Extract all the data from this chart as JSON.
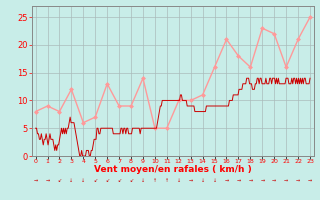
{
  "title": "",
  "xlabel": "Vent moyen/en rafales ( km/h )",
  "background_color": "#c8ede8",
  "grid_color": "#aabbbb",
  "axis_color": "#888888",
  "line1_color": "#cc0000",
  "line2_color": "#ff9999",
  "ylim": [
    0,
    27
  ],
  "xlim": [
    0,
    23
  ],
  "yticks": [
    0,
    5,
    10,
    15,
    20,
    25
  ],
  "xtick_labels": [
    "0",
    "1",
    "2",
    "3",
    "4",
    "5",
    "6",
    "7",
    "8",
    "9",
    "10",
    "11",
    "12",
    "13",
    "14",
    "15",
    "16",
    "17",
    "18",
    "19",
    "20",
    "21",
    "22",
    "23"
  ],
  "wind_avg": [
    5,
    5,
    4,
    4,
    3,
    3,
    4,
    3,
    2,
    3,
    3,
    4,
    3,
    2,
    3,
    4,
    3,
    3,
    3,
    2,
    1,
    2,
    1,
    2,
    2,
    3,
    4,
    5,
    4,
    5,
    4,
    5,
    4,
    5,
    5,
    6,
    7,
    6,
    6,
    6,
    6,
    5,
    4,
    3,
    2,
    1,
    0,
    0,
    1,
    0,
    0,
    0,
    0,
    1,
    1,
    1,
    0,
    0,
    1,
    1,
    2,
    3,
    3,
    3,
    5,
    5,
    4,
    4,
    5,
    5,
    5,
    5,
    5,
    5,
    5,
    5,
    5,
    5,
    5,
    5,
    5,
    4,
    4,
    4,
    4,
    4,
    4,
    4,
    4,
    5,
    5,
    4,
    5,
    5,
    4,
    5,
    5,
    4,
    4,
    4,
    4,
    5,
    5,
    5,
    5,
    5,
    5,
    5,
    5,
    4,
    5,
    5,
    5,
    5,
    5,
    5,
    5,
    5,
    5,
    5,
    5,
    5,
    5,
    5,
    5,
    5,
    5,
    6,
    7,
    8,
    9,
    9,
    10,
    10,
    10,
    10,
    10,
    10,
    10,
    10,
    10,
    10,
    10,
    10,
    10,
    10,
    10,
    10,
    10,
    10,
    10,
    11,
    11,
    10,
    10,
    10,
    10,
    10,
    9,
    9,
    9,
    9,
    9,
    9,
    9,
    9,
    8,
    8,
    8,
    8,
    8,
    8,
    8,
    8,
    8,
    8,
    8,
    8,
    9,
    9,
    9,
    9,
    9,
    9,
    9,
    9,
    9,
    9,
    9,
    9,
    9,
    9,
    9,
    9,
    9,
    9,
    9,
    9,
    9,
    9,
    9,
    9,
    10,
    10,
    10,
    10,
    11,
    11,
    11,
    11,
    11,
    11,
    12,
    12,
    12,
    12,
    13,
    13,
    13,
    13,
    14,
    14,
    14,
    13,
    13,
    13,
    12,
    12,
    12,
    13,
    13,
    14,
    14,
    13,
    14,
    14,
    13,
    13,
    13,
    13,
    14,
    13,
    13,
    13,
    14,
    14,
    13,
    14,
    14,
    14,
    13,
    14,
    13,
    14,
    13,
    13,
    13,
    13,
    13,
    13,
    13,
    14,
    14,
    14,
    13,
    13,
    13,
    14,
    13,
    14,
    14,
    13,
    14,
    13,
    14,
    13,
    14,
    13,
    14,
    13,
    14,
    14,
    13,
    13,
    13,
    13,
    14
  ],
  "wind_gust": [
    8,
    9,
    8,
    12,
    6,
    7,
    13,
    9,
    9,
    14,
    5,
    5,
    10,
    10,
    11,
    16,
    21,
    18,
    16,
    23,
    22,
    16,
    21,
    25
  ],
  "gust_x": [
    0,
    1,
    2,
    3,
    4,
    5,
    6,
    7,
    8,
    9,
    10,
    11,
    12,
    13,
    14,
    15,
    16,
    17,
    18,
    19,
    20,
    21,
    22,
    23
  ],
  "wind_dir_texts": [
    "r",
    "r",
    "z",
    "b",
    "b",
    "b",
    "b",
    "b",
    "b",
    "b",
    "u",
    "u",
    "b",
    "r",
    "r",
    "b",
    "r",
    "r",
    "r",
    "r",
    "r",
    "r",
    "r",
    "r"
  ]
}
